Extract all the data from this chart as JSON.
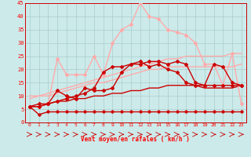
{
  "x": [
    0,
    1,
    2,
    3,
    4,
    5,
    6,
    7,
    8,
    9,
    10,
    11,
    12,
    13,
    14,
    15,
    16,
    17,
    18,
    19,
    20,
    21,
    22,
    23
  ],
  "line_flat_dark": [
    6,
    3,
    4,
    4,
    4,
    4,
    4,
    4,
    4,
    4,
    4,
    4,
    4,
    4,
    4,
    4,
    4,
    4,
    4,
    4,
    4,
    4,
    4,
    4
  ],
  "line_rise_dark": [
    6,
    6,
    7,
    8,
    8,
    9,
    9,
    10,
    10,
    11,
    11,
    12,
    12,
    13,
    13,
    14,
    14,
    14,
    14,
    13,
    13,
    13,
    13,
    14
  ],
  "line_rise_light1": [
    9,
    10,
    10,
    11,
    12,
    13,
    14,
    15,
    15,
    16,
    17,
    18,
    19,
    20,
    20,
    21,
    21,
    21,
    21,
    21,
    21,
    21,
    21,
    22
  ],
  "line_rise_light2": [
    10,
    10,
    11,
    12,
    13,
    14,
    15,
    16,
    17,
    18,
    19,
    20,
    21,
    22,
    23,
    24,
    24,
    25,
    25,
    25,
    25,
    25,
    26,
    26
  ],
  "line_zigzag_dark": [
    6,
    6,
    7,
    12,
    10,
    9,
    13,
    12,
    12,
    13,
    19,
    22,
    23,
    21,
    22,
    20,
    19,
    15,
    14,
    14,
    14,
    14,
    14,
    14
  ],
  "line_zigzag_dark2": [
    6,
    7,
    7,
    8,
    9,
    10,
    11,
    13,
    19,
    21,
    21,
    22,
    22,
    23,
    23,
    22,
    23,
    22,
    15,
    14,
    22,
    21,
    15,
    14
  ],
  "line_peak_light": [
    6,
    6,
    7,
    24,
    18,
    18,
    18,
    25,
    18,
    30,
    35,
    37,
    45,
    40,
    39,
    35,
    34,
    33,
    30,
    22,
    22,
    14,
    26,
    7
  ],
  "color_dark": "#cc0000",
  "color_light": "#ffaaaa",
  "color_mid": "#ff6666",
  "bg_color": "#cceaea",
  "grid_color": "#aacccc",
  "xlabel": "Vent moyen/en rafales ( km/h )",
  "ylim": [
    0,
    45
  ],
  "yticks": [
    0,
    5,
    10,
    15,
    20,
    25,
    30,
    35,
    40,
    45
  ],
  "xlim": [
    -0.5,
    23.5
  ]
}
